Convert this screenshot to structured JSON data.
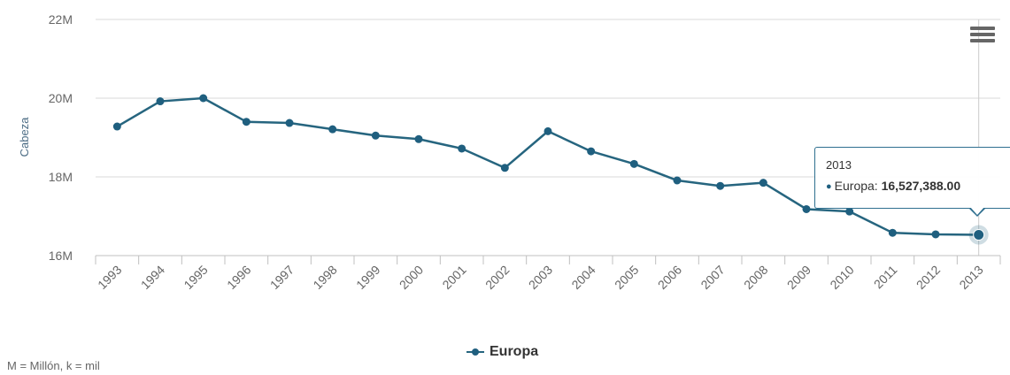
{
  "chart_data": {
    "type": "line",
    "ylabel": "Cabeza",
    "ylim": [
      16000000,
      22000000
    ],
    "y_ticks": [
      "16M",
      "18M",
      "20M",
      "22M"
    ],
    "y_tick_values": [
      16000000,
      18000000,
      20000000,
      22000000
    ],
    "x": [
      "1993",
      "1994",
      "1995",
      "1996",
      "1997",
      "1998",
      "1999",
      "2000",
      "2001",
      "2002",
      "2003",
      "2004",
      "2005",
      "2006",
      "2007",
      "2008",
      "2009",
      "2010",
      "2011",
      "2012",
      "2013"
    ],
    "series": [
      {
        "name": "Europa",
        "color": "#26657f",
        "values": [
          19280000,
          19920000,
          20000000,
          19400000,
          19370000,
          19210000,
          19050000,
          18960000,
          18720000,
          18230000,
          19160000,
          18650000,
          18330000,
          17910000,
          17770000,
          17850000,
          17180000,
          17120000,
          16580000,
          16540000,
          16527388
        ]
      }
    ],
    "grid": true,
    "legend": "bottom-center",
    "tooltip": {
      "year": "2013",
      "series_label": "Europa:",
      "value": "16,527,388.00"
    },
    "footnote": "M = Millón, k = mil"
  }
}
